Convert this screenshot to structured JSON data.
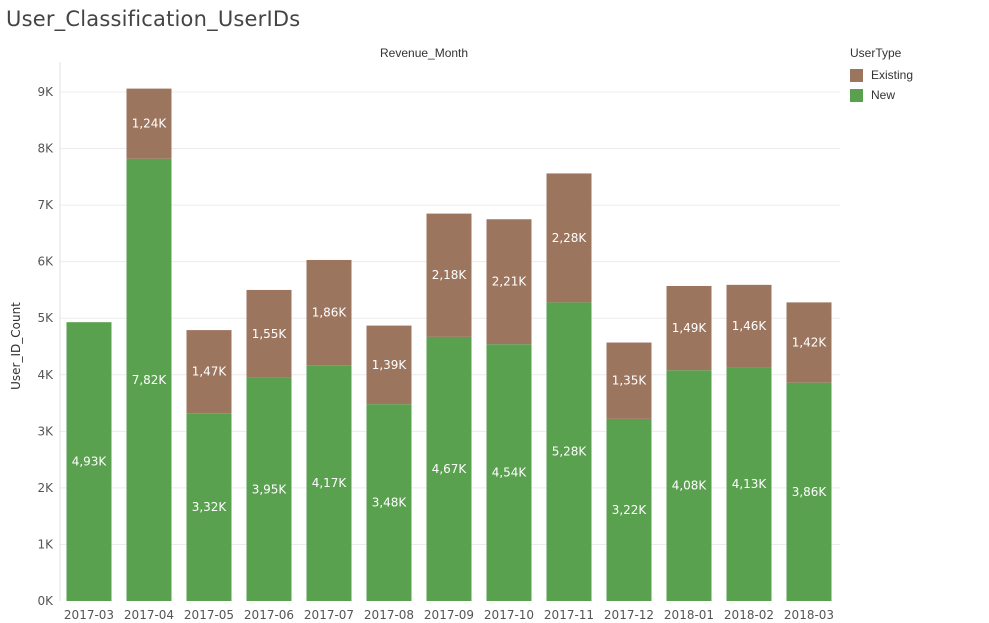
{
  "page": {
    "title": "User_Classification_UserIDs"
  },
  "chart_data": {
    "type": "bar",
    "stacked": true,
    "column_header": "Revenue_Month",
    "ylabel": "User_ID_Count",
    "ylim": [
      0,
      9500
    ],
    "yticks": [
      0,
      1000,
      2000,
      3000,
      4000,
      5000,
      6000,
      7000,
      8000,
      9000
    ],
    "ytick_labels": [
      "0K",
      "1K",
      "2K",
      "3K",
      "4K",
      "5K",
      "6K",
      "7K",
      "8K",
      "9K"
    ],
    "grid": true,
    "legend": {
      "title": "UserType",
      "placement": "top-right"
    },
    "categories": [
      "2017-03",
      "2017-04",
      "2017-05",
      "2017-06",
      "2017-07",
      "2017-08",
      "2017-09",
      "2017-10",
      "2017-11",
      "2017-12",
      "2018-01",
      "2018-02",
      "2018-03"
    ],
    "series": [
      {
        "name": "New",
        "color": "#59a14f",
        "values": [
          4930,
          7820,
          3320,
          3950,
          4170,
          3480,
          4670,
          4540,
          5280,
          3220,
          4080,
          4130,
          3860
        ],
        "labels": [
          "4,93K",
          "7,82K",
          "3,32K",
          "3,95K",
          "4,17K",
          "3,48K",
          "4,67K",
          "4,54K",
          "5,28K",
          "3,22K",
          "4,08K",
          "4,13K",
          "3,86K"
        ]
      },
      {
        "name": "Existing",
        "color": "#9c755f",
        "values": [
          0,
          1240,
          1470,
          1550,
          1860,
          1390,
          2180,
          2210,
          2280,
          1350,
          1490,
          1460,
          1420
        ],
        "labels": [
          "",
          "1,24K",
          "1,47K",
          "1,55K",
          "1,86K",
          "1,39K",
          "2,18K",
          "2,21K",
          "2,28K",
          "1,35K",
          "1,49K",
          "1,46K",
          "1,42K"
        ]
      }
    ]
  }
}
